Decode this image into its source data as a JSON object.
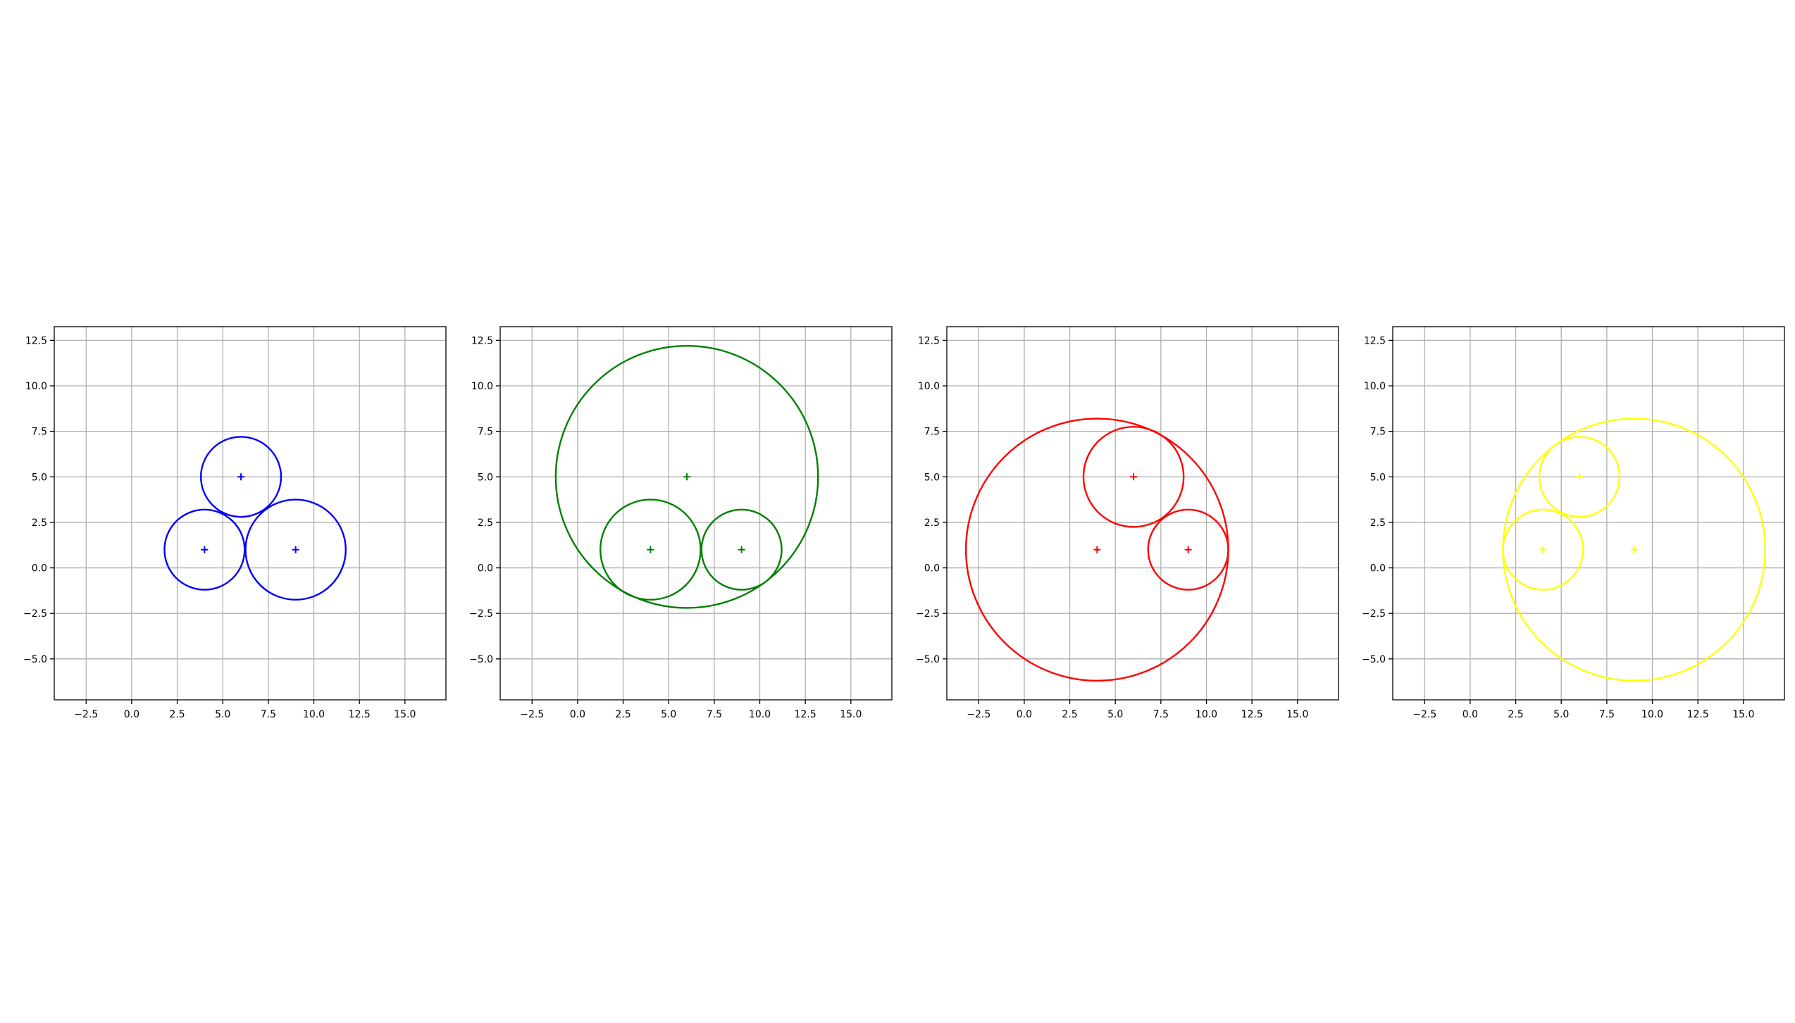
{
  "chart_data": [
    {
      "type": "scatter",
      "color": "#0000ff",
      "xlim": [
        -4.25,
        17.25
      ],
      "ylim": [
        -7.25,
        13.25
      ],
      "xticks": [
        "−2.5",
        "0.0",
        "2.5",
        "5.0",
        "7.5",
        "10.0",
        "12.5",
        "15.0"
      ],
      "yticks": [
        "−5.0",
        "−2.5",
        "0.0",
        "2.5",
        "5.0",
        "7.5",
        "10.0",
        "12.5"
      ],
      "xtick_values": [
        -2.5,
        0,
        2.5,
        5,
        7.5,
        10,
        12.5,
        15
      ],
      "ytick_values": [
        -5,
        -2.5,
        0,
        2.5,
        5,
        7.5,
        10,
        12.5
      ],
      "grid": true,
      "points": [
        {
          "x": 4,
          "y": 1
        },
        {
          "x": 9,
          "y": 1
        },
        {
          "x": 6,
          "y": 5
        }
      ],
      "circles": [
        {
          "cx": 4,
          "cy": 1,
          "r": 2.2
        },
        {
          "cx": 9,
          "cy": 1,
          "r": 2.75
        },
        {
          "cx": 6,
          "cy": 5,
          "r": 2.2
        }
      ]
    },
    {
      "type": "scatter",
      "color": "#008000",
      "xlim": [
        -4.25,
        17.25
      ],
      "ylim": [
        -7.25,
        13.25
      ],
      "xticks": [
        "−2.5",
        "0.0",
        "2.5",
        "5.0",
        "7.5",
        "10.0",
        "12.5",
        "15.0"
      ],
      "yticks": [
        "−5.0",
        "−2.5",
        "0.0",
        "2.5",
        "5.0",
        "7.5",
        "10.0",
        "12.5"
      ],
      "xtick_values": [
        -2.5,
        0,
        2.5,
        5,
        7.5,
        10,
        12.5,
        15
      ],
      "ytick_values": [
        -5,
        -2.5,
        0,
        2.5,
        5,
        7.5,
        10,
        12.5
      ],
      "grid": true,
      "points": [
        {
          "x": 4,
          "y": 1
        },
        {
          "x": 9,
          "y": 1
        },
        {
          "x": 6,
          "y": 5
        }
      ],
      "circles": [
        {
          "cx": 4,
          "cy": 1,
          "r": 2.75
        },
        {
          "cx": 9,
          "cy": 1,
          "r": 2.2
        },
        {
          "cx": 6,
          "cy": 5,
          "r": 7.2
        }
      ]
    },
    {
      "type": "scatter",
      "color": "#ff0000",
      "xlim": [
        -4.25,
        17.25
      ],
      "ylim": [
        -7.25,
        13.25
      ],
      "xticks": [
        "−2.5",
        "0.0",
        "2.5",
        "5.0",
        "7.5",
        "10.0",
        "12.5",
        "15.0"
      ],
      "yticks": [
        "−5.0",
        "−2.5",
        "0.0",
        "2.5",
        "5.0",
        "7.5",
        "10.0",
        "12.5"
      ],
      "xtick_values": [
        -2.5,
        0,
        2.5,
        5,
        7.5,
        10,
        12.5,
        15
      ],
      "ytick_values": [
        -5,
        -2.5,
        0,
        2.5,
        5,
        7.5,
        10,
        12.5
      ],
      "grid": true,
      "points": [
        {
          "x": 4,
          "y": 1
        },
        {
          "x": 9,
          "y": 1
        },
        {
          "x": 6,
          "y": 5
        }
      ],
      "circles": [
        {
          "cx": 4,
          "cy": 1,
          "r": 7.2
        },
        {
          "cx": 9,
          "cy": 1,
          "r": 2.2
        },
        {
          "cx": 6,
          "cy": 5,
          "r": 2.75
        }
      ]
    },
    {
      "type": "scatter",
      "color": "#ffff00",
      "xlim": [
        -4.25,
        17.25
      ],
      "ylim": [
        -7.25,
        13.25
      ],
      "xticks": [
        "−2.5",
        "0.0",
        "2.5",
        "5.0",
        "7.5",
        "10.0",
        "12.5",
        "15.0"
      ],
      "yticks": [
        "−5.0",
        "−2.5",
        "0.0",
        "2.5",
        "5.0",
        "7.5",
        "10.0",
        "12.5"
      ],
      "xtick_values": [
        -2.5,
        0,
        2.5,
        5,
        7.5,
        10,
        12.5,
        15
      ],
      "ytick_values": [
        -5,
        -2.5,
        0,
        2.5,
        5,
        7.5,
        10,
        12.5
      ],
      "grid": true,
      "points": [
        {
          "x": 4,
          "y": 1
        },
        {
          "x": 9,
          "y": 1
        },
        {
          "x": 6,
          "y": 5
        }
      ],
      "circles": [
        {
          "cx": 4,
          "cy": 1,
          "r": 2.2
        },
        {
          "cx": 9,
          "cy": 1,
          "r": 7.2
        },
        {
          "cx": 6,
          "cy": 5,
          "r": 2.2
        }
      ]
    }
  ]
}
